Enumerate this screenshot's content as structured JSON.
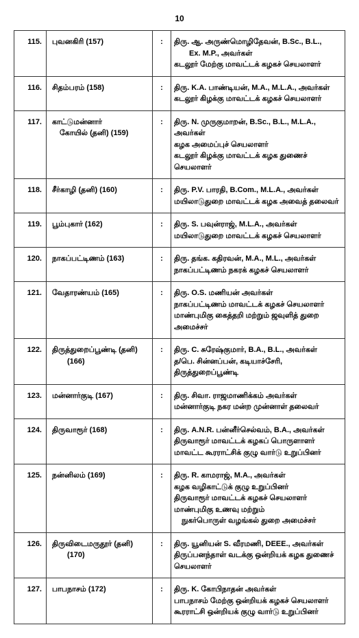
{
  "page_number": "10",
  "rows": [
    {
      "num": "115.",
      "left": [
        "புவனகிரி (157)"
      ],
      "right": [
        "திரு. ஆ. அருண்மொழிதேவன், B.Sc., B.L.,",
        "　　Ex. M.P., அவர்கள்",
        "கடலூர் மேற்கு மாவட்டக் கழகச் செயலாளர்"
      ]
    },
    {
      "num": "116.",
      "left": [
        "சிதம்பரம் (158)"
      ],
      "right": [
        "திரு. K.A. பாண்டியன், M.A., M.L.A., அவர்கள்",
        "கடலூர் கிழக்கு மாவட்டக் கழகச் செயலாளர்"
      ]
    },
    {
      "num": "117.",
      "left": [
        "காட்டுமன்னார்",
        "　கோயில் (தனி) (159)"
      ],
      "right": [
        "திரு. N. முருகுமாறன், B.Sc., B.L., M.L.A., அவர்கள்",
        "கழக அமைப்புச் செயலாளர்",
        "கடலூர் கிழக்கு மாவட்டக் கழக துணைச் செயலாளர்"
      ]
    },
    {
      "num": "118.",
      "left": [
        "சீர்காழி (தனி) (160)"
      ],
      "right": [
        "திரு. P.V. பாரதி, B.Com., M.L.A., அவர்கள்",
        "மயிலாடுதுறை மாவட்டக் கழக அவைத் தலைவர்"
      ]
    },
    {
      "num": "119.",
      "left": [
        "பூம்புகார் (162)"
      ],
      "right": [
        "திரு. S. பவுன்ராஜ், M.L.A., அவர்கள்",
        "மயிலாடுதுறை மாவட்டக் கழகச் செயலாளர்"
      ]
    },
    {
      "num": "120.",
      "left": [
        "நாகப்பட்டிணம் (163)"
      ],
      "right": [
        "திரு. தங்க. கதிரவன், M.A., M.L., அவர்கள்",
        "நாகப்பட்டிணம் நகரக் கழகச் செயலாளர்"
      ]
    },
    {
      "num": "121.",
      "left": [
        "வேதாரண்யம் (165)"
      ],
      "right": [
        "திரு. O.S. மணியன் அவர்கள்",
        "நாகப்பட்டிணம் மாவட்டக் கழகச் செயலாளர்",
        "மாண்புமிகு கைத்தறி மற்றும் ஜவுளித் துறை அமைச்சர்"
      ]
    },
    {
      "num": "122.",
      "left": [
        "திருத்துறைப்பூண்டி (தனி)",
        "　　(166)"
      ],
      "right": [
        "திரு. C. சுரேஷ்குமார், B.A., B.L., அவர்கள்",
        "த/பெ. சின்னப்பன், கடியாச்சேரி, திருத்துறைப்பூண்டி"
      ]
    },
    {
      "num": "123.",
      "left": [
        "மன்னார்குடி (167)"
      ],
      "right": [
        "திரு. சிவா. ராஜமாணிக்கம் அவர்கள்",
        "மன்னார்குடி நகர மன்ற முன்னாள் தலைவர்"
      ]
    },
    {
      "num": "124.",
      "left": [
        "திருவாரூர் (168)"
      ],
      "right": [
        "திரு. A.N.R. பன்னீர்செல்வம், B.A., அவர்கள்",
        "திருவாரூர் மாவட்டக் கழகப் பொருளாளர்",
        "மாவட்ட கூரராட்சிக் குழு வார்டு உறுப்பினர்"
      ]
    },
    {
      "num": "125.",
      "left": [
        "நன்னிலம் (169)"
      ],
      "right": [
        "திரு. R. காமராஜ், M.A., அவர்கள்",
        "கழக வழிகாட்டுக் குழு உறுப்பினர்",
        "திருவாரூர் மாவட்டக் கழகச் செயலாளர்",
        "மாண்புமிகு உணவு மற்றும்",
        "　நுகர்பொருள் வழங்கல் துறை அமைச்சர்"
      ]
    },
    {
      "num": "126.",
      "left": [
        "திருவிடைமருதூர் (தனி)",
        "　　(170)"
      ],
      "right": [
        "திரு. யூனியன் S. வீரமணி, DEEE., அவர்கள்",
        "திருப்பனந்தாள் வடக்கு ஒன்றியக் கழக துணைச் செயலாளர்"
      ]
    },
    {
      "num": "127.",
      "left": [
        "பாபநாசம் (172)"
      ],
      "right": [
        "திரு. K. கோபிநாதன் அவர்கள்",
        "பாபநாசம் மேற்கு ஒன்றியக் கழகச் செயலாளர்",
        "கூரராட்சி ஒன்றியக் குழு வார்டு உறுப்பினர்"
      ]
    }
  ]
}
